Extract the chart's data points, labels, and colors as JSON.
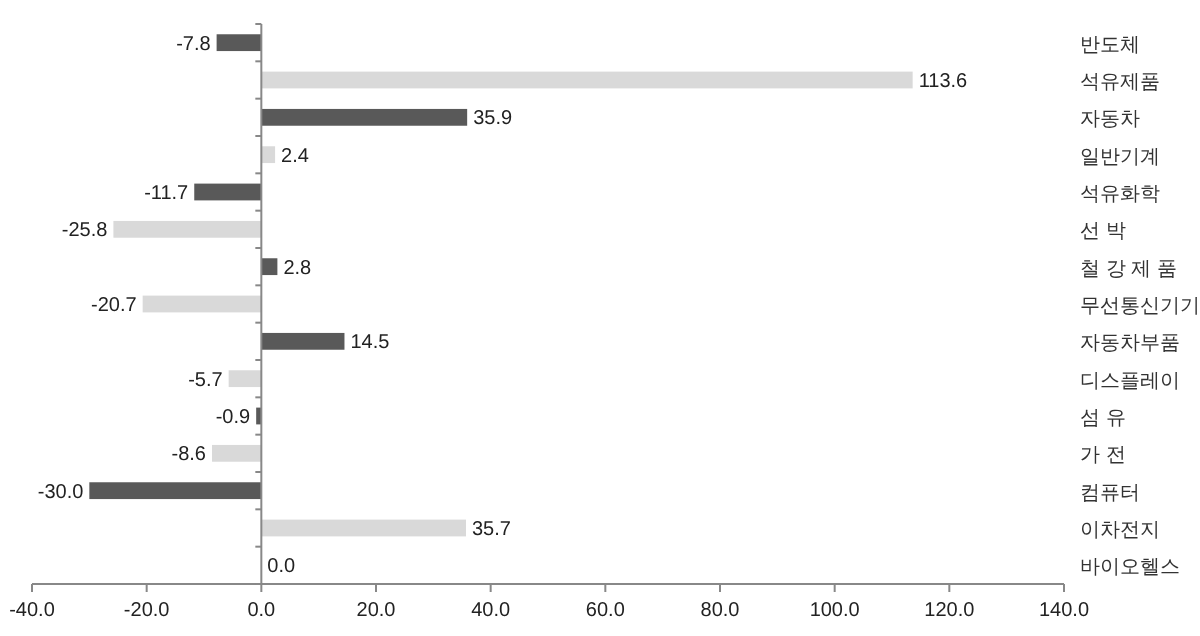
{
  "chart_data": {
    "type": "bar",
    "orientation": "horizontal",
    "categories": [
      "반도체",
      "석유제품",
      "자동차",
      "일반기계",
      "석유화학",
      "선 박",
      "철 강 제 품",
      "무선통신기기",
      "자동차부품",
      "디스플레이",
      "섬 유",
      "가 전",
      "컴퓨터",
      "이차전지",
      "바이오헬스"
    ],
    "values": [
      -7.8,
      113.6,
      35.9,
      2.4,
      -11.7,
      -25.8,
      2.8,
      -20.7,
      14.5,
      -5.7,
      -0.9,
      -8.6,
      -30.0,
      35.7,
      0.0
    ],
    "value_labels": [
      "-7.8",
      "113.6",
      "35.9",
      "2.4",
      "-11.7",
      "-25.8",
      "2.8",
      "-20.7",
      "14.5",
      "-5.7",
      "-0.9",
      "-8.6",
      "-30.0",
      "35.7",
      "0.0"
    ],
    "colors": [
      "#595959",
      "#d9d9d9",
      "#595959",
      "#d9d9d9",
      "#595959",
      "#d9d9d9",
      "#595959",
      "#d9d9d9",
      "#595959",
      "#d9d9d9",
      "#595959",
      "#d9d9d9",
      "#595959",
      "#d9d9d9",
      "#595959"
    ],
    "xlim": [
      -40,
      140
    ],
    "xticks": [
      {
        "value": -40,
        "label": "-40.0"
      },
      {
        "value": -20,
        "label": "-20.0"
      },
      {
        "value": 0,
        "label": "0.0"
      },
      {
        "value": 20,
        "label": "20.0"
      },
      {
        "value": 40,
        "label": "40.0"
      },
      {
        "value": 60,
        "label": "60.0"
      },
      {
        "value": 80,
        "label": "80.0"
      },
      {
        "value": 100,
        "label": "100.0"
      },
      {
        "value": 120,
        "label": "120.0"
      },
      {
        "value": 140,
        "label": "140.0"
      }
    ]
  }
}
